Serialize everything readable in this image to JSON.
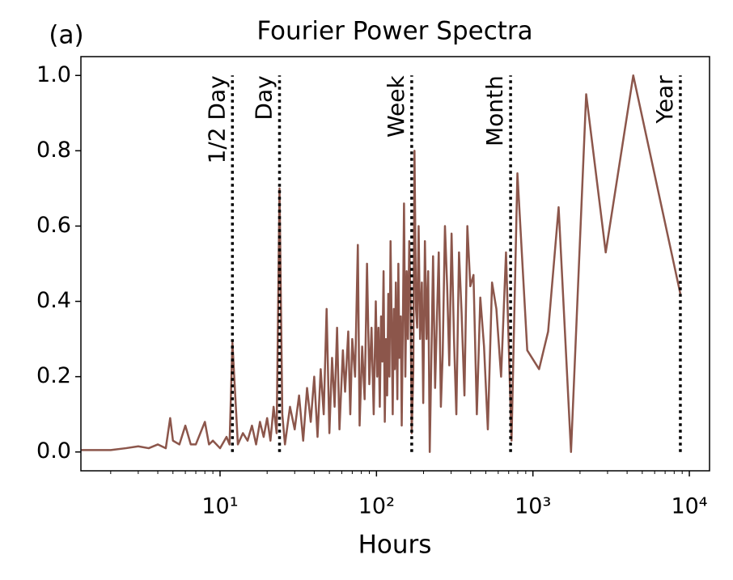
{
  "chart_data": {
    "type": "line",
    "title": "Fourier Power Spectra",
    "annotation": "(a)",
    "xlabel": "Hours",
    "xscale": "log",
    "xlim": [
      1.29,
      13460
    ],
    "ylim": [
      -0.05,
      1.05
    ],
    "xticks": [
      {
        "value": 10,
        "label": "10¹"
      },
      {
        "value": 100,
        "label": "10²"
      },
      {
        "value": 1000,
        "label": "10³"
      },
      {
        "value": 10000,
        "label": "10⁴"
      }
    ],
    "xminorticks": [
      2,
      3,
      4,
      5,
      6,
      7,
      8,
      9,
      20,
      30,
      40,
      50,
      60,
      70,
      80,
      90,
      200,
      300,
      400,
      500,
      600,
      700,
      800,
      900,
      2000,
      3000,
      4000,
      5000,
      6000,
      7000,
      8000,
      9000
    ],
    "yticks": [
      {
        "value": 0,
        "label": "0.0"
      },
      0.2,
      0.4,
      0.6,
      0.8,
      {
        "value": 1,
        "label": "1.0"
      }
    ],
    "vline_range": [
      0,
      1
    ],
    "vlines": [
      {
        "x": 12,
        "label": "1/2 Day"
      },
      {
        "x": 24,
        "label": "Day"
      },
      {
        "x": 168,
        "label": "Week"
      },
      {
        "x": 720,
        "label": "Month"
      },
      {
        "x": 8760,
        "label": "Year"
      }
    ],
    "series": [
      {
        "color": "#8c564b",
        "x": [
          1.3,
          2,
          2.5,
          3,
          3.5,
          4,
          4.5,
          4.8,
          5,
          5.5,
          6,
          6.5,
          7,
          8,
          8.5,
          9,
          10,
          11,
          11.5,
          12,
          13,
          14,
          15,
          16,
          17,
          18,
          19,
          20,
          21,
          22,
          23,
          24,
          25,
          26,
          28,
          30,
          32,
          34,
          36,
          38,
          40,
          42,
          44,
          46,
          48,
          50,
          52,
          54,
          56,
          58,
          61,
          63,
          66,
          68,
          70,
          73,
          76,
          78,
          81,
          84,
          87,
          90,
          93,
          96,
          99,
          101,
          103,
          105,
          107,
          109,
          111,
          113,
          115,
          117,
          119,
          121,
          123,
          125,
          127,
          129,
          131,
          133,
          136,
          138,
          140,
          143,
          145,
          148,
          150,
          153,
          156,
          159,
          162,
          165,
          168,
          172,
          175,
          179,
          182,
          186,
          190,
          195,
          199,
          204,
          209,
          214,
          219,
          225,
          230,
          237,
          243,
          250,
          258,
          265,
          274,
          283,
          292,
          302,
          313,
          324,
          337,
          350,
          365,
          381,
          398,
          417,
          438,
          461,
          487,
          515,
          548,
          584,
          626,
          673,
          730,
          796,
          920,
          1095,
          1251,
          1460,
          1752,
          2190,
          2920,
          4380,
          8760
        ],
        "values": [
          0.005,
          0.005,
          0.01,
          0.015,
          0.01,
          0.02,
          0.01,
          0.09,
          0.03,
          0.02,
          0.07,
          0.02,
          0.02,
          0.08,
          0.02,
          0.03,
          0.01,
          0.04,
          0.02,
          0.29,
          0.02,
          0.05,
          0.03,
          0.07,
          0.02,
          0.08,
          0.04,
          0.09,
          0.03,
          0.12,
          0.05,
          0.7,
          0.1,
          0.02,
          0.12,
          0.06,
          0.15,
          0.03,
          0.17,
          0.08,
          0.2,
          0.04,
          0.22,
          0.1,
          0.38,
          0.05,
          0.25,
          0.12,
          0.33,
          0.06,
          0.27,
          0.16,
          0.32,
          0.1,
          0.3,
          0.2,
          0.55,
          0.07,
          0.28,
          0.14,
          0.5,
          0.18,
          0.33,
          0.1,
          0.4,
          0.2,
          0.33,
          0.12,
          0.36,
          0.24,
          0.48,
          0.08,
          0.3,
          0.15,
          0.42,
          0.2,
          0.56,
          0.34,
          0.1,
          0.38,
          0.22,
          0.45,
          0.14,
          0.5,
          0.25,
          0.36,
          0.07,
          0.4,
          0.66,
          0.2,
          0.48,
          0.3,
          0.56,
          0.41,
          0.05,
          0.22,
          0.8,
          0.38,
          0.33,
          0.6,
          0.3,
          0.45,
          0.13,
          0.56,
          0.3,
          0.48,
          0.0,
          0.28,
          0.52,
          0.17,
          0.34,
          0.53,
          0.12,
          0.26,
          0.6,
          0.44,
          0.23,
          0.58,
          0.3,
          0.1,
          0.53,
          0.37,
          0.15,
          0.6,
          0.44,
          0.47,
          0.1,
          0.41,
          0.28,
          0.06,
          0.45,
          0.38,
          0.2,
          0.53,
          0.03,
          0.74,
          0.27,
          0.22,
          0.32,
          0.65,
          0.0,
          0.95,
          0.53,
          1.0,
          0.42
        ]
      }
    ]
  }
}
